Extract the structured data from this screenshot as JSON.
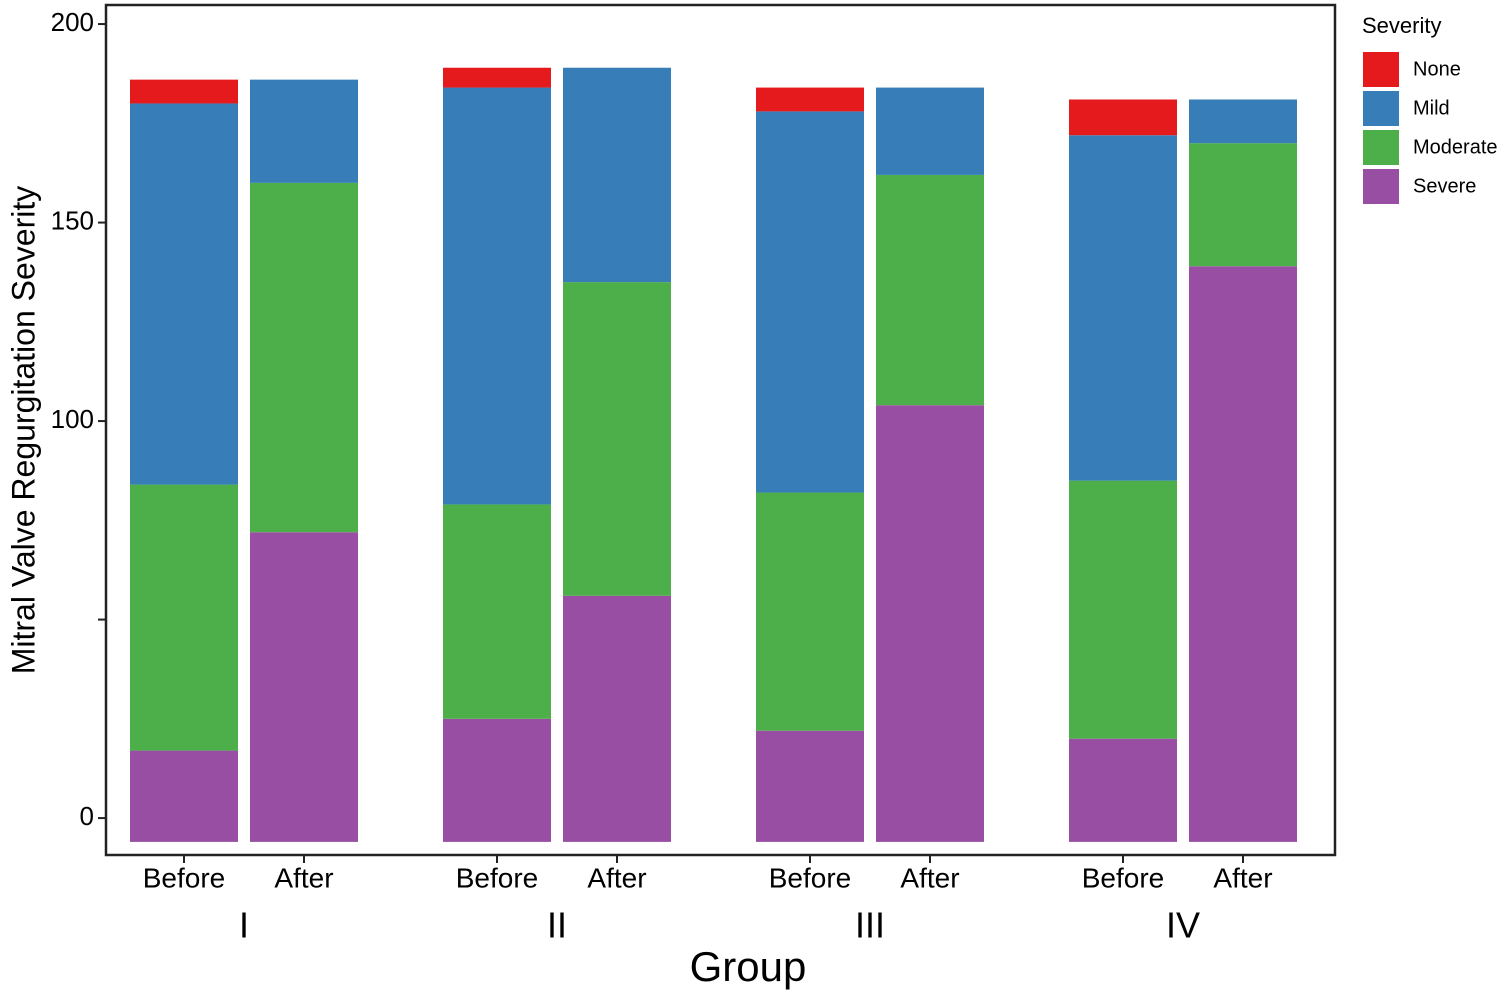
{
  "chart_data": {
    "type": "stacked_bar",
    "y_label": "Mitral Valve Regurgitation Severity",
    "x_label": "Group",
    "categories": [
      "Before",
      "After",
      "Before",
      "After",
      "Before",
      "After",
      "Before",
      "After"
    ],
    "groups": [
      "I",
      "II",
      "III",
      "IV"
    ],
    "baseline": -6,
    "series": [
      {
        "name": "None",
        "color": "#e41a1c",
        "values": [
          6,
          0,
          5,
          0,
          6,
          0,
          9,
          0
        ]
      },
      {
        "name": "Mild",
        "color": "#377eb8",
        "values": [
          96,
          26,
          105,
          54,
          96,
          22,
          87,
          11
        ]
      },
      {
        "name": "Moderate",
        "color": "#4daf4a",
        "values": [
          67,
          88,
          54,
          79,
          60,
          58,
          65,
          31
        ]
      },
      {
        "name": "Severe",
        "color": "#984ea3",
        "values": [
          23,
          78,
          31,
          62,
          28,
          110,
          26,
          145
        ]
      }
    ],
    "legend_title": "Severity",
    "legend_position": "right",
    "ylim": [
      -9.3,
      204.8
    ],
    "yticks": [
      0,
      {
        "value": 50,
        "label": null
      },
      100,
      150,
      200
    ]
  }
}
